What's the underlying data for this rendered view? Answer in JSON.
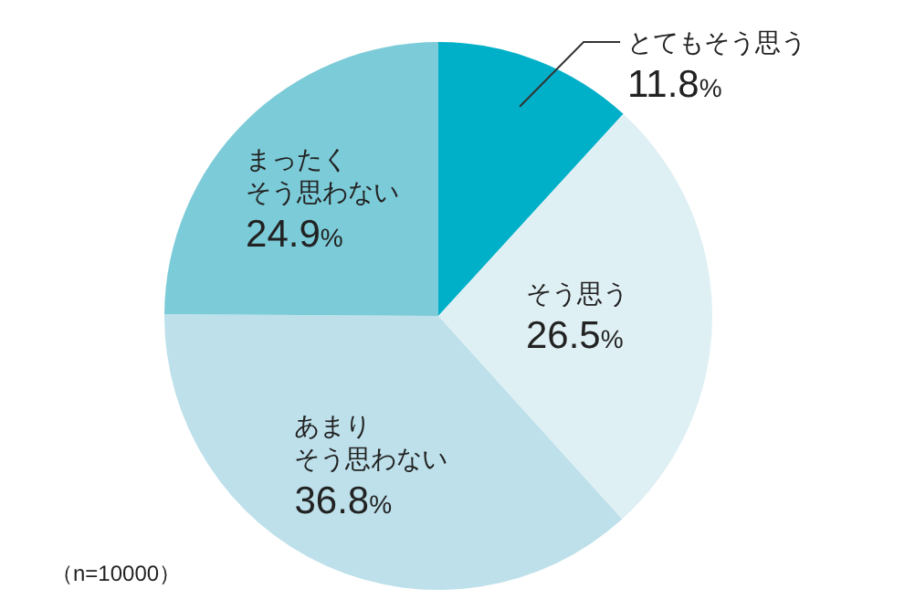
{
  "chart_data": {
    "type": "pie",
    "categories": [
      "とてもそう思う",
      "そう思う",
      "あまりそう思わない",
      "まったくそう思わない"
    ],
    "values": [
      11.8,
      26.5,
      36.8,
      24.9
    ],
    "value_labels": [
      "11.8%",
      "26.5%",
      "36.8%",
      "24.9%"
    ],
    "colors": [
      "#00b0c8",
      "#dff0f4",
      "#bde0ea",
      "#7ccbd8"
    ],
    "annotations": [
      "（n=10000）"
    ]
  }
}
